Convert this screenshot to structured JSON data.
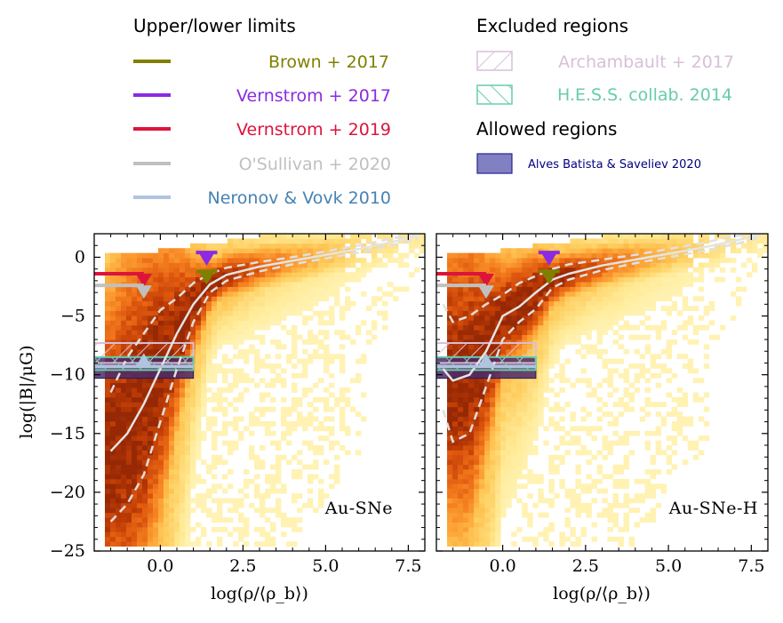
{
  "legend": {
    "limits_title": "Upper/lower limits",
    "excluded_title": "Excluded regions",
    "allowed_title": "Allowed regions",
    "limits": [
      {
        "label": "Brown + 2017",
        "color": "#808000"
      },
      {
        "label": "Vernstrom + 2017",
        "color": "#8a2be2"
      },
      {
        "label": "Vernstrom + 2019",
        "color": "#dc143c"
      },
      {
        "label": "O'Sullivan + 2020",
        "color": "#c0c0c0"
      },
      {
        "label": "Neronov & Vovk 2010",
        "color": "#4682b4",
        "line_color": "#b0c4de"
      }
    ],
    "excluded": [
      {
        "label": "Archambault + 2017",
        "color": "#d8bfd8"
      },
      {
        "label": "H.E.S.S. collab. 2014",
        "color": "#66cdaa"
      }
    ],
    "allowed": [
      {
        "label": "Alves Batista & Saveliev 2020",
        "color": "#000080",
        "fill": "#6a6ab8"
      }
    ]
  },
  "chart_data": [
    {
      "type": "heatmap",
      "title": "",
      "panel_label": "Au-SNe",
      "xlabel": "log(ρ/⟨ρ_b⟩)",
      "ylabel": "log(|B|/μG)",
      "xlim": [
        -2.0,
        8.0
      ],
      "ylim": [
        -25,
        2
      ],
      "xticks": [
        "0.0",
        "2.5",
        "5.0",
        "7.5"
      ],
      "xtick_values": [
        0.0,
        2.5,
        5.0,
        7.5
      ],
      "yticks": [
        "0",
        "−5",
        "−10",
        "−15",
        "−20",
        "−25"
      ],
      "ytick_values": [
        0,
        -5,
        -10,
        -15,
        -20,
        -25
      ],
      "median": {
        "x": [
          -1.5,
          -1.0,
          -0.5,
          0.0,
          0.5,
          1.0,
          1.5,
          2.0,
          3.0,
          4.0,
          5.0,
          6.0,
          7.0,
          7.8
        ],
        "y": [
          -16.5,
          -15.0,
          -12.5,
          -9.5,
          -6.5,
          -4.0,
          -2.3,
          -1.5,
          -0.8,
          -0.3,
          0.2,
          0.7,
          1.3,
          1.8
        ]
      },
      "lower_band": {
        "x": [
          -1.5,
          -1.0,
          -0.5,
          0.0,
          0.5,
          1.0,
          1.5,
          2.0,
          3.0,
          4.0,
          5.0,
          6.0,
          7.0,
          7.8
        ],
        "y": [
          -22.5,
          -21.0,
          -18.5,
          -14.0,
          -9.5,
          -5.5,
          -3.0,
          -2.0,
          -1.2,
          -0.6,
          -0.1,
          0.4,
          1.0,
          1.6
        ]
      },
      "upper_band": {
        "x": [
          -1.5,
          -1.0,
          -0.5,
          0.0,
          0.5,
          1.0,
          1.5,
          2.0,
          3.0,
          4.0,
          5.0,
          6.0,
          7.0,
          7.8
        ],
        "y": [
          -11.5,
          -8.5,
          -6.5,
          -4.5,
          -3.5,
          -2.2,
          -1.4,
          -0.9,
          -0.4,
          0.0,
          0.5,
          1.0,
          1.6,
          2.0
        ]
      },
      "limits": [
        {
          "name": "Brown + 2017",
          "x": 1.4,
          "y": -1.2,
          "x_start": null,
          "direction": "down"
        },
        {
          "name": "Vernstrom + 2017",
          "x": 1.4,
          "y": 0.4,
          "x_start": null,
          "direction": "down"
        },
        {
          "name": "Vernstrom + 2019",
          "x": -0.5,
          "y": -1.4,
          "x_start": -2.0,
          "direction": "down"
        },
        {
          "name": "O'Sullivan + 2020",
          "x": -0.5,
          "y": -2.4,
          "x_start": -2.0,
          "direction": "down"
        },
        {
          "name": "Neronov & Vovk 2010",
          "x": -0.5,
          "y": -9.3,
          "x_start": -2.0,
          "direction": "up"
        }
      ],
      "excluded_regions": [
        {
          "name": "Archambault + 2017",
          "x": [
            -2.0,
            1.0
          ],
          "y": [
            -9.0,
            -7.3
          ]
        },
        {
          "name": "H.E.S.S. collab. 2014",
          "x": [
            -2.0,
            1.0
          ],
          "y": [
            -9.6,
            -8.5
          ]
        }
      ],
      "allowed_regions": [
        {
          "name": "Alves Batista & Saveliev 2020",
          "x": [
            -2.0,
            1.0
          ],
          "y": [
            -10.3,
            -8.5
          ]
        }
      ]
    },
    {
      "type": "heatmap",
      "title": "",
      "panel_label": "Au-SNe-H",
      "xlabel": "log(ρ/⟨ρ_b⟩)",
      "ylabel": "",
      "xlim": [
        -2.0,
        8.0
      ],
      "ylim": [
        -25,
        2
      ],
      "xticks": [
        "0.0",
        "2.5",
        "5.0",
        "7.5"
      ],
      "xtick_values": [
        0.0,
        2.5,
        5.0,
        7.5
      ],
      "median": {
        "x": [
          -1.8,
          -1.5,
          -1.0,
          -0.5,
          0.0,
          0.5,
          1.0,
          1.5,
          2.0,
          3.0,
          4.0,
          5.0,
          6.0,
          7.0,
          7.8
        ],
        "y": [
          -9.5,
          -10.5,
          -10.0,
          -8.0,
          -5.0,
          -4.2,
          -3.0,
          -1.9,
          -1.4,
          -0.7,
          -0.2,
          0.3,
          0.8,
          1.4,
          1.9
        ]
      },
      "lower_band": {
        "x": [
          -1.8,
          -1.5,
          -1.0,
          -0.5,
          0.0,
          0.5,
          1.0,
          1.5,
          2.0,
          3.0,
          4.0,
          5.0,
          6.0,
          7.0,
          7.8
        ],
        "y": [
          -13.0,
          -15.7,
          -15.0,
          -11.0,
          -7.0,
          -5.5,
          -4.4,
          -2.6,
          -1.9,
          -1.1,
          -0.5,
          0.0,
          0.5,
          1.1,
          1.7
        ]
      },
      "upper_band": {
        "x": [
          -1.8,
          -1.5,
          -1.0,
          -0.5,
          0.0,
          0.5,
          1.0,
          1.5,
          2.0,
          3.0,
          4.0,
          5.0,
          6.0,
          7.0,
          7.8
        ],
        "y": [
          -4.0,
          -5.5,
          -5.0,
          -4.0,
          -3.2,
          -2.2,
          -1.6,
          -1.0,
          -0.6,
          -0.2,
          0.2,
          0.7,
          1.2,
          1.8,
          2.0
        ]
      },
      "limits": [
        {
          "name": "Brown + 2017",
          "x": 1.4,
          "y": -1.2,
          "x_start": null,
          "direction": "down"
        },
        {
          "name": "Vernstrom + 2017",
          "x": 1.4,
          "y": 0.4,
          "x_start": null,
          "direction": "down"
        },
        {
          "name": "Vernstrom + 2019",
          "x": -0.5,
          "y": -1.4,
          "x_start": -2.0,
          "direction": "down"
        },
        {
          "name": "O'Sullivan + 2020",
          "x": -0.5,
          "y": -2.4,
          "x_start": -2.0,
          "direction": "down"
        },
        {
          "name": "Neronov & Vovk 2010",
          "x": -0.5,
          "y": -9.3,
          "x_start": -2.0,
          "direction": "up"
        }
      ],
      "excluded_regions": [
        {
          "name": "Archambault + 2017",
          "x": [
            -2.0,
            1.0
          ],
          "y": [
            -9.0,
            -7.3
          ]
        },
        {
          "name": "H.E.S.S. collab. 2014",
          "x": [
            -2.0,
            1.0
          ],
          "y": [
            -9.6,
            -8.5
          ]
        }
      ],
      "allowed_regions": [
        {
          "name": "Alves Batista & Saveliev 2020",
          "x": [
            -2.0,
            1.0
          ],
          "y": [
            -10.3,
            -8.5
          ]
        }
      ]
    }
  ]
}
